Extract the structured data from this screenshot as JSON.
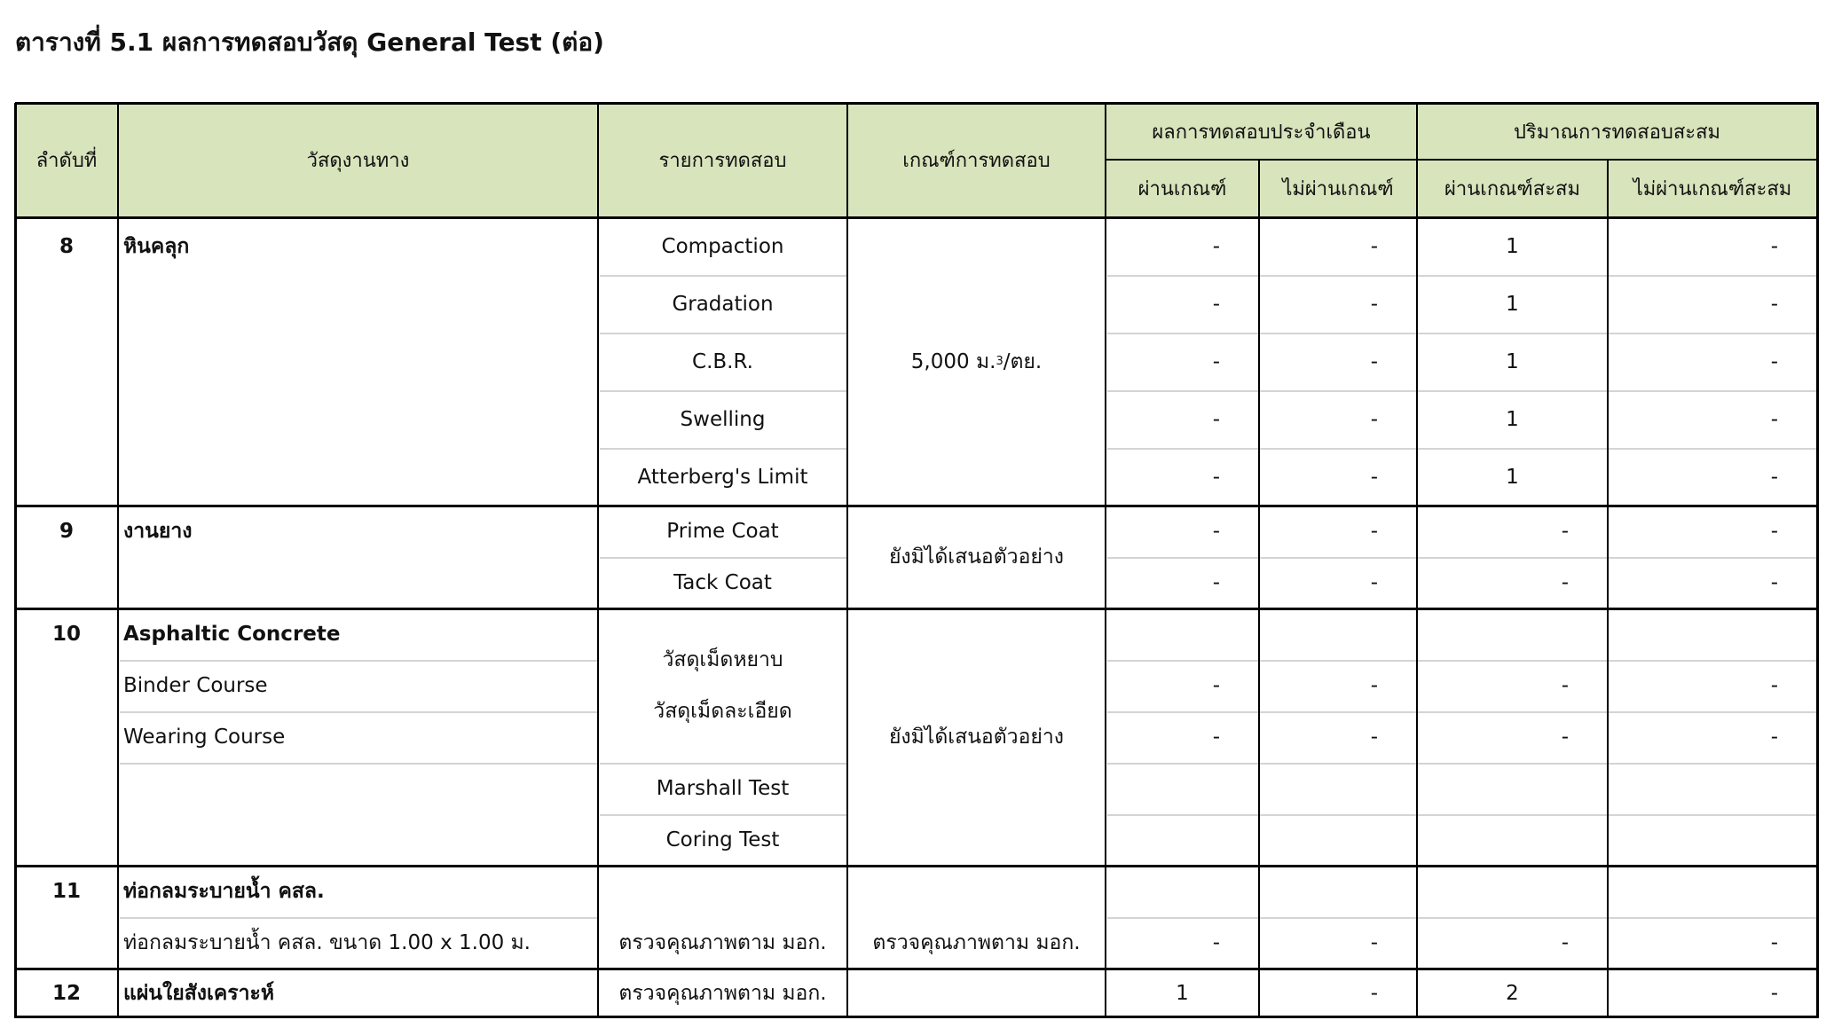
{
  "title": "ตารางที่ 5.1 ผลการทดสอบวัสดุ General Test (ต่อ)",
  "header": {
    "no": "ลำดับที่",
    "material": "วัสดุงานทาง",
    "test": "รายการทดสอบ",
    "criteria": "เกณฑ์การทดสอบ",
    "monthly_group": "ผลการทดสอบประจำเดือน",
    "cumulative_group": "ปริมาณการทดสอบสะสม",
    "month_pass": "ผ่านเกณฑ์",
    "month_fail": "ไม่ผ่านเกณฑ์",
    "cum_pass": "ผ่านเกณฑ์สะสม",
    "cum_fail": "ไม่ผ่านเกณฑ์สะสม"
  },
  "colors": {
    "header_bg": "#d8e4bc",
    "divider": "#d4d4d4"
  },
  "rows": [
    {
      "no": "8",
      "material": "หินคลุก",
      "criteria": {
        "main": "5,000 ม.",
        "sup": "3",
        "tail": "/ตย."
      },
      "tests": [
        {
          "name": "Compaction",
          "values": [
            "-",
            "-",
            "1",
            "-"
          ]
        },
        {
          "name": "Gradation",
          "values": [
            "-",
            "-",
            "1",
            "-"
          ]
        },
        {
          "name": "C.B.R.",
          "values": [
            "-",
            "-",
            "1",
            "-"
          ]
        },
        {
          "name": "Swelling",
          "values": [
            "-",
            "-",
            "1",
            "-"
          ]
        },
        {
          "name": "Atterberg's Limit",
          "values": [
            "-",
            "-",
            "1",
            "-"
          ]
        }
      ]
    },
    {
      "no": "9",
      "material": "งานยาง",
      "criteria": "ยังมิได้เสนอตัวอย่าง",
      "tests": [
        {
          "name": "Prime Coat",
          "values": [
            "-",
            "-",
            "-",
            "-"
          ]
        },
        {
          "name": "Tack Coat",
          "values": [
            "-",
            "-",
            "-",
            "-"
          ]
        }
      ]
    },
    {
      "no": "10",
      "material": "Asphaltic Concrete",
      "criteria": "ยังมิได้เสนอตัวอย่าง",
      "sub_materials": [
        {
          "name": "Binder Course",
          "values": [
            "-",
            "-",
            "-",
            "-"
          ]
        },
        {
          "name": "Wearing Course",
          "values": [
            "-",
            "-",
            "-",
            "-"
          ]
        }
      ],
      "tests": [
        "วัสดุเม็ดหยาบ",
        "วัสดุเม็ดละเอียด",
        "Marshall Test",
        "Coring Test"
      ]
    },
    {
      "no": "11",
      "material": "ท่อกลมระบายน้ำ คสล.",
      "sub_material": "ท่อกลมระบายน้ำ คสล. ขนาด 1.00 x 1.00 ม.",
      "test": "ตรวจคุณภาพตาม มอก.",
      "criteria": "ตรวจคุณภาพตาม มอก.",
      "values": [
        "-",
        "-",
        "-",
        "-"
      ]
    },
    {
      "no": "12",
      "material": "แผ่นใยสังเคราะห์",
      "test": "ตรวจคุณภาพตาม มอก.",
      "criteria": "",
      "values": [
        "1",
        "-",
        "2",
        "-"
      ]
    }
  ]
}
